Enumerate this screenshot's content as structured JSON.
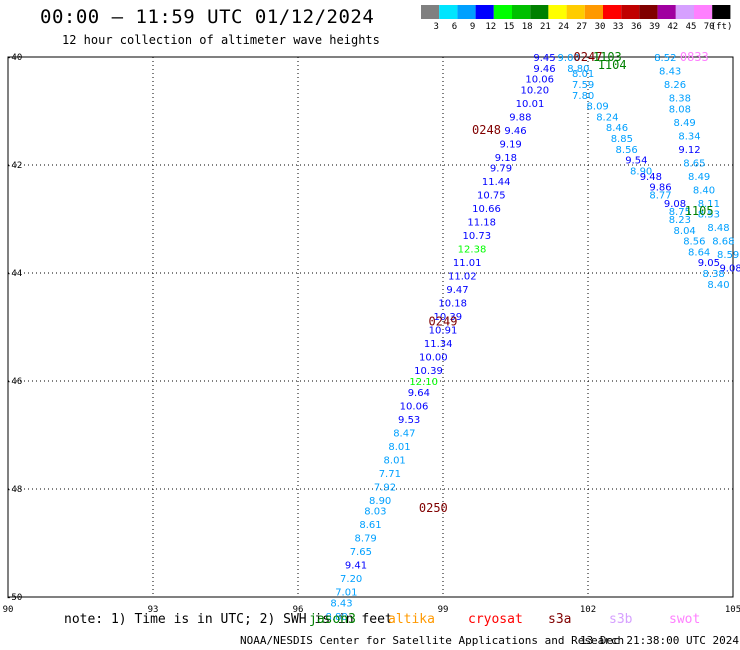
{
  "header": {
    "title": "00:00 – 11:59 UTC 01/12/2024",
    "subtitle": "12 hour collection of altimeter wave heights"
  },
  "legend": {
    "unit": "(ft)",
    "bins": [
      {
        "label": "3",
        "color": "#808080"
      },
      {
        "label": "6",
        "color": "#00e5ff"
      },
      {
        "label": "9",
        "color": "#00a0ff"
      },
      {
        "label": "12",
        "color": "#0000ff"
      },
      {
        "label": "15",
        "color": "#00ff00"
      },
      {
        "label": "18",
        "color": "#00c000"
      },
      {
        "label": "21",
        "color": "#008000"
      },
      {
        "label": "24",
        "color": "#ffff00"
      },
      {
        "label": "27",
        "color": "#ffcc00"
      },
      {
        "label": "30",
        "color": "#ff9900"
      },
      {
        "label": "33",
        "color": "#ff0000"
      },
      {
        "label": "36",
        "color": "#c00000"
      },
      {
        "label": "39",
        "color": "#800000"
      },
      {
        "label": "42",
        "color": "#a000a0"
      },
      {
        "label": "45",
        "color": "#d6a0ff"
      },
      {
        "label": "70",
        "color": "#ff80ff"
      },
      {
        "label": "",
        "color": "#000000"
      }
    ]
  },
  "footer": {
    "note": "note:  1) Time is in UTC; 2) SWH is in feet",
    "satellites": [
      {
        "name": "jason3",
        "color": "#008000"
      },
      {
        "name": "altika",
        "color": "#ff9900"
      },
      {
        "name": "cryosat",
        "color": "#ff0000"
      },
      {
        "name": "s3a",
        "color": "#800000"
      },
      {
        "name": "s3b",
        "color": "#d6a0ff"
      },
      {
        "name": "swot",
        "color": "#ff80ff"
      }
    ],
    "credit": "NOAA/NESDIS Center for Satellite Applications and Research",
    "timestamp": "13 Dec 21:38:00 UTC 2024"
  },
  "chart_data": {
    "type": "scatter",
    "xlim": [
      90,
      105
    ],
    "ylim": [
      -50,
      -40
    ],
    "x_ticks": [
      "90",
      "93",
      "96",
      "99",
      "102",
      "105"
    ],
    "y_ticks": [
      "-40",
      "-42",
      "-44",
      "-46",
      "-48",
      "-50"
    ],
    "grid": true,
    "time_labels": [
      {
        "x": 102.0,
        "y": -40.0,
        "text": "0247",
        "color": "#800000"
      },
      {
        "x": 102.4,
        "y": -40.0,
        "text": "1103",
        "color": "#008000"
      },
      {
        "x": 102.5,
        "y": -40.15,
        "text": "1104",
        "color": "#008000"
      },
      {
        "x": 104.2,
        "y": -40.0,
        "text": "0833",
        "color": "#ff80ff"
      },
      {
        "x": 99.9,
        "y": -41.35,
        "text": "0248",
        "color": "#800000"
      },
      {
        "x": 104.3,
        "y": -42.85,
        "text": "1105",
        "color": "#008000"
      },
      {
        "x": 99.0,
        "y": -44.9,
        "text": "0249",
        "color": "#800000"
      },
      {
        "x": 98.8,
        "y": -48.35,
        "text": "0250",
        "color": "#800000"
      }
    ],
    "series": [
      {
        "name": "cryosat",
        "points": [
          {
            "x": 101.1,
            "y": -40.0,
            "v": "9.45",
            "c": "#0000ff"
          },
          {
            "x": 101.6,
            "y": -40.0,
            "v": "9.00",
            "c": "#00a0ff"
          },
          {
            "x": 101.1,
            "y": -40.2,
            "v": "9.46",
            "c": "#0000ff"
          },
          {
            "x": 101.8,
            "y": -40.2,
            "v": "8.80",
            "c": "#00a0ff"
          },
          {
            "x": 101.0,
            "y": -40.4,
            "v": "10.06",
            "c": "#0000ff"
          },
          {
            "x": 101.9,
            "y": -40.3,
            "v": "8.01",
            "c": "#00a0ff"
          },
          {
            "x": 100.9,
            "y": -40.6,
            "v": "10.20",
            "c": "#0000ff"
          },
          {
            "x": 101.9,
            "y": -40.5,
            "v": "7.59",
            "c": "#00a0ff"
          },
          {
            "x": 100.8,
            "y": -40.85,
            "v": "10.01",
            "c": "#0000ff"
          },
          {
            "x": 101.9,
            "y": -40.7,
            "v": "7.80",
            "c": "#00a0ff"
          },
          {
            "x": 100.6,
            "y": -41.1,
            "v": "9.88",
            "c": "#0000ff"
          },
          {
            "x": 102.2,
            "y": -40.9,
            "v": "8.09",
            "c": "#00a0ff"
          },
          {
            "x": 100.5,
            "y": -41.35,
            "v": "9.46",
            "c": "#0000ff"
          },
          {
            "x": 102.4,
            "y": -41.1,
            "v": "8.24",
            "c": "#00a0ff"
          },
          {
            "x": 100.4,
            "y": -41.6,
            "v": "9.19",
            "c": "#0000ff"
          },
          {
            "x": 102.6,
            "y": -41.3,
            "v": "8.46",
            "c": "#00a0ff"
          },
          {
            "x": 100.3,
            "y": -41.85,
            "v": "9.18",
            "c": "#0000ff"
          },
          {
            "x": 102.7,
            "y": -41.5,
            "v": "8.85",
            "c": "#00a0ff"
          },
          {
            "x": 100.2,
            "y": -42.05,
            "v": "9.79",
            "c": "#0000ff"
          },
          {
            "x": 102.8,
            "y": -41.7,
            "v": "8.56",
            "c": "#00a0ff"
          },
          {
            "x": 100.1,
            "y": -42.3,
            "v": "11.44",
            "c": "#0000ff"
          },
          {
            "x": 103.0,
            "y": -41.9,
            "v": "9.54",
            "c": "#0000ff"
          },
          {
            "x": 100.0,
            "y": -42.55,
            "v": "10.75",
            "c": "#0000ff"
          },
          {
            "x": 103.1,
            "y": -42.1,
            "v": "8.90",
            "c": "#00a0ff"
          },
          {
            "x": 99.9,
            "y": -42.8,
            "v": "10.66",
            "c": "#0000ff"
          },
          {
            "x": 103.3,
            "y": -42.2,
            "v": "9.48",
            "c": "#0000ff"
          },
          {
            "x": 99.8,
            "y": -43.05,
            "v": "11.18",
            "c": "#0000ff"
          },
          {
            "x": 103.5,
            "y": -42.4,
            "v": "9.86",
            "c": "#0000ff"
          },
          {
            "x": 99.7,
            "y": -43.3,
            "v": "10.73",
            "c": "#0000ff"
          },
          {
            "x": 103.5,
            "y": -42.55,
            "v": "8.77",
            "c": "#00a0ff"
          },
          {
            "x": 99.6,
            "y": -43.55,
            "v": "12.38",
            "c": "#00ff00"
          },
          {
            "x": 103.8,
            "y": -42.7,
            "v": "9.08",
            "c": "#0000ff"
          },
          {
            "x": 99.5,
            "y": -43.8,
            "v": "11.01",
            "c": "#0000ff"
          },
          {
            "x": 103.9,
            "y": -42.85,
            "v": "8.75",
            "c": "#00a0ff"
          },
          {
            "x": 99.4,
            "y": -44.05,
            "v": "11.02",
            "c": "#0000ff"
          },
          {
            "x": 103.9,
            "y": -43.0,
            "v": "8.23",
            "c": "#00a0ff"
          },
          {
            "x": 99.3,
            "y": -44.3,
            "v": "9.47",
            "c": "#0000ff"
          },
          {
            "x": 104.0,
            "y": -43.2,
            "v": "8.04",
            "c": "#00a0ff"
          },
          {
            "x": 99.2,
            "y": -44.55,
            "v": "10.18",
            "c": "#0000ff"
          },
          {
            "x": 104.2,
            "y": -43.4,
            "v": "8.56",
            "c": "#00a0ff"
          },
          {
            "x": 99.1,
            "y": -44.8,
            "v": "10.39",
            "c": "#0000ff"
          },
          {
            "x": 104.3,
            "y": -43.6,
            "v": "8.64",
            "c": "#00a0ff"
          },
          {
            "x": 99.0,
            "y": -45.05,
            "v": "10.91",
            "c": "#0000ff"
          },
          {
            "x": 104.5,
            "y": -43.8,
            "v": "9.05",
            "c": "#0000ff"
          },
          {
            "x": 98.9,
            "y": -45.3,
            "v": "11.34",
            "c": "#0000ff"
          },
          {
            "x": 104.6,
            "y": -44.0,
            "v": "8.38",
            "c": "#00a0ff"
          },
          {
            "x": 98.8,
            "y": -45.55,
            "v": "10.00",
            "c": "#0000ff"
          },
          {
            "x": 104.7,
            "y": -44.2,
            "v": "8.40",
            "c": "#00a0ff"
          },
          {
            "x": 98.7,
            "y": -45.8,
            "v": "10.39",
            "c": "#0000ff"
          },
          {
            "x": 98.6,
            "y": -46.0,
            "v": "12.10",
            "c": "#00ff00"
          },
          {
            "x": 98.5,
            "y": -46.2,
            "v": "9.64",
            "c": "#0000ff"
          },
          {
            "x": 98.4,
            "y": -46.45,
            "v": "10.06",
            "c": "#0000ff"
          },
          {
            "x": 98.3,
            "y": -46.7,
            "v": "9.53",
            "c": "#0000ff"
          },
          {
            "x": 98.2,
            "y": -46.95,
            "v": "8.47",
            "c": "#00a0ff"
          },
          {
            "x": 98.1,
            "y": -47.2,
            "v": "8.01",
            "c": "#00a0ff"
          },
          {
            "x": 98.0,
            "y": -47.45,
            "v": "8.01",
            "c": "#00a0ff"
          },
          {
            "x": 97.9,
            "y": -47.7,
            "v": "7.71",
            "c": "#00a0ff"
          },
          {
            "x": 97.8,
            "y": -47.95,
            "v": "7.92",
            "c": "#00a0ff"
          },
          {
            "x": 97.7,
            "y": -48.2,
            "v": "8.90",
            "c": "#00a0ff"
          },
          {
            "x": 97.6,
            "y": -48.4,
            "v": "8.03",
            "c": "#00a0ff"
          },
          {
            "x": 97.5,
            "y": -48.65,
            "v": "8.61",
            "c": "#00a0ff"
          },
          {
            "x": 97.4,
            "y": -48.9,
            "v": "8.79",
            "c": "#00a0ff"
          },
          {
            "x": 97.3,
            "y": -49.15,
            "v": "7.65",
            "c": "#00a0ff"
          },
          {
            "x": 97.2,
            "y": -49.4,
            "v": "9.41",
            "c": "#0000ff"
          },
          {
            "x": 97.1,
            "y": -49.65,
            "v": "7.20",
            "c": "#00a0ff"
          },
          {
            "x": 97.0,
            "y": -49.9,
            "v": "7.01",
            "c": "#00a0ff"
          },
          {
            "x": 96.9,
            "y": -50.1,
            "v": "8.43",
            "c": "#00a0ff"
          },
          {
            "x": 96.8,
            "y": -50.35,
            "v": "8.88",
            "c": "#00a0ff"
          }
        ]
      },
      {
        "name": "swot",
        "points": [
          {
            "x": 103.6,
            "y": -40.0,
            "v": "8.52",
            "c": "#00a0ff"
          },
          {
            "x": 103.7,
            "y": -40.25,
            "v": "8.43",
            "c": "#00a0ff"
          },
          {
            "x": 103.8,
            "y": -40.5,
            "v": "8.26",
            "c": "#00a0ff"
          },
          {
            "x": 103.9,
            "y": -40.75,
            "v": "8.38",
            "c": "#00a0ff"
          },
          {
            "x": 103.9,
            "y": -40.95,
            "v": "8.08",
            "c": "#00a0ff"
          },
          {
            "x": 104.0,
            "y": -41.2,
            "v": "8.49",
            "c": "#00a0ff"
          },
          {
            "x": 104.1,
            "y": -41.45,
            "v": "8.34",
            "c": "#00a0ff"
          },
          {
            "x": 104.1,
            "y": -41.7,
            "v": "9.12",
            "c": "#0000ff"
          },
          {
            "x": 104.2,
            "y": -41.95,
            "v": "8.65",
            "c": "#00a0ff"
          },
          {
            "x": 104.3,
            "y": -42.2,
            "v": "8.49",
            "c": "#00a0ff"
          },
          {
            "x": 104.4,
            "y": -42.45,
            "v": "8.40",
            "c": "#00a0ff"
          },
          {
            "x": 104.5,
            "y": -42.7,
            "v": "8.11",
            "c": "#00a0ff"
          },
          {
            "x": 104.5,
            "y": -42.9,
            "v": "8.53",
            "c": "#00a0ff"
          },
          {
            "x": 104.7,
            "y": -43.15,
            "v": "8.48",
            "c": "#00a0ff"
          },
          {
            "x": 104.8,
            "y": -43.4,
            "v": "8.68",
            "c": "#00a0ff"
          },
          {
            "x": 104.9,
            "y": -43.65,
            "v": "8.59",
            "c": "#00a0ff"
          },
          {
            "x": 104.95,
            "y": -43.9,
            "v": "9.08",
            "c": "#0000ff"
          }
        ]
      }
    ]
  }
}
